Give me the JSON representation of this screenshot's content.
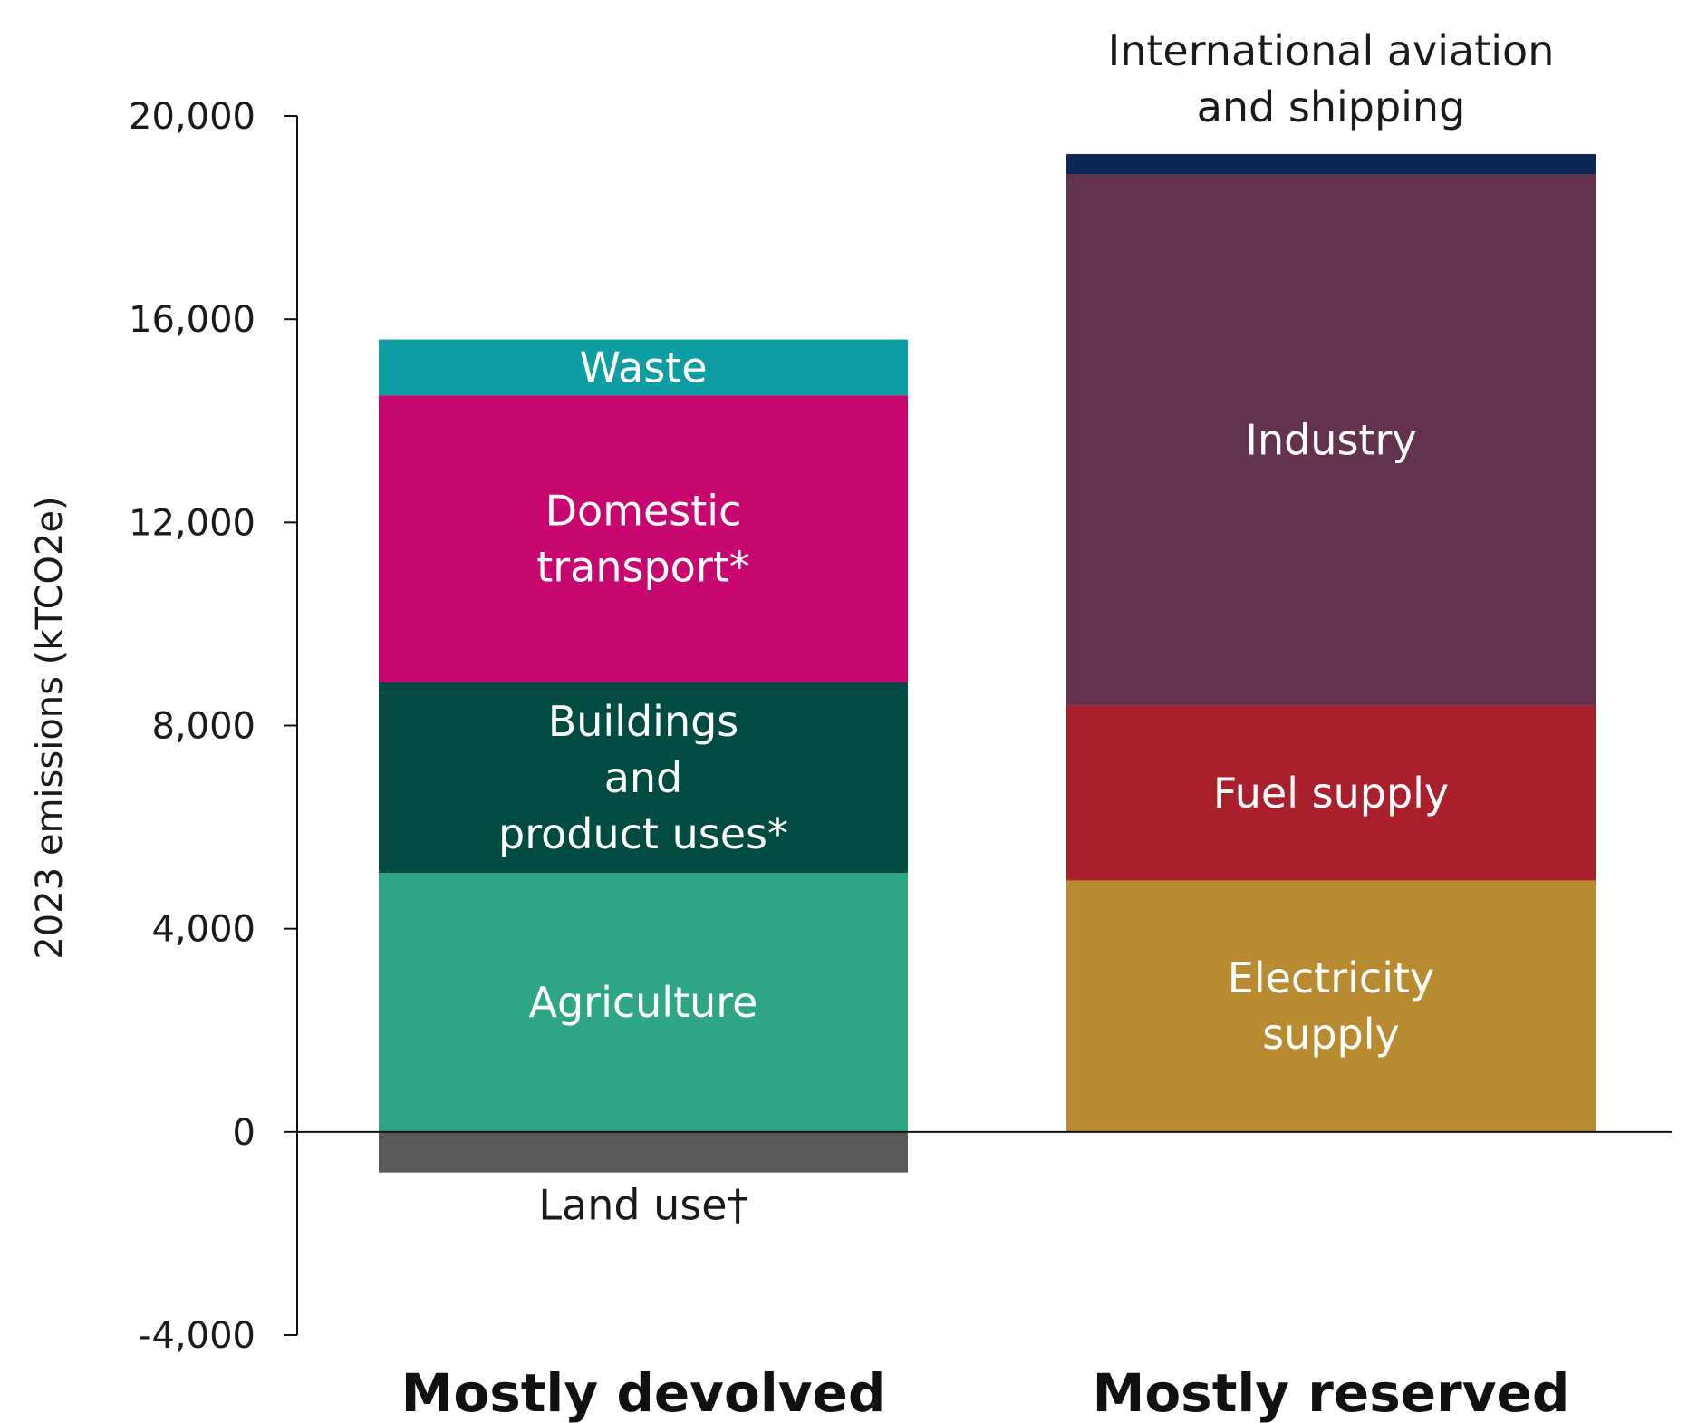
{
  "chart_data": {
    "type": "bar",
    "stacked": true,
    "categories": [
      "Mostly devolved",
      "Mostly reserved"
    ],
    "ylabel": "2023 emissions (kTCO2e)",
    "ylim": [
      -4000,
      20000
    ],
    "yticks": [
      20000,
      16000,
      12000,
      8000,
      4000,
      0,
      -4000
    ],
    "ytick_labels": [
      "20,000",
      "16,000",
      "12,000",
      "8,000",
      "4,000",
      "0",
      "-4,000"
    ],
    "grid": false,
    "legend": "none",
    "series": [
      {
        "category": 0,
        "label_lines": [
          "Agriculture"
        ],
        "value": 5100,
        "color": "#2ea686",
        "text_color": "#ffffff",
        "label_pos": "inside"
      },
      {
        "category": 0,
        "label_lines": [
          "Buildings",
          "and",
          "product uses*"
        ],
        "value": 3750,
        "color": "#004c43",
        "text_color": "#ffffff",
        "label_pos": "inside"
      },
      {
        "category": 0,
        "label_lines": [
          "Domestic",
          "transport*"
        ],
        "value": 5650,
        "color": "#c8066f",
        "text_color": "#ffffff",
        "label_pos": "inside"
      },
      {
        "category": 0,
        "label_lines": [
          "Waste"
        ],
        "value": 1100,
        "color": "#0d9ea3",
        "text_color": "#ffffff",
        "label_pos": "inside"
      },
      {
        "category": 0,
        "label_lines": [
          "Land use†"
        ],
        "value": -800,
        "color": "#5a5a5a",
        "text_color": "#1a1a1a",
        "label_pos": "below"
      },
      {
        "category": 1,
        "label_lines": [
          "Electricity",
          "supply"
        ],
        "value": 4950,
        "color": "#b88b30",
        "text_color": "#ffffff",
        "label_pos": "inside"
      },
      {
        "category": 1,
        "label_lines": [
          "Fuel supply"
        ],
        "value": 3450,
        "color": "#a9202c",
        "text_color": "#ffffff",
        "label_pos": "inside"
      },
      {
        "category": 1,
        "label_lines": [
          "Industry"
        ],
        "value": 10450,
        "color": "#63324f",
        "text_color": "#ffffff",
        "label_pos": "inside"
      },
      {
        "category": 1,
        "label_lines": [
          "International aviation",
          "and shipping"
        ],
        "value": 400,
        "color": "#0c2955",
        "text_color": "#1a1a1a",
        "label_pos": "above"
      }
    ]
  }
}
